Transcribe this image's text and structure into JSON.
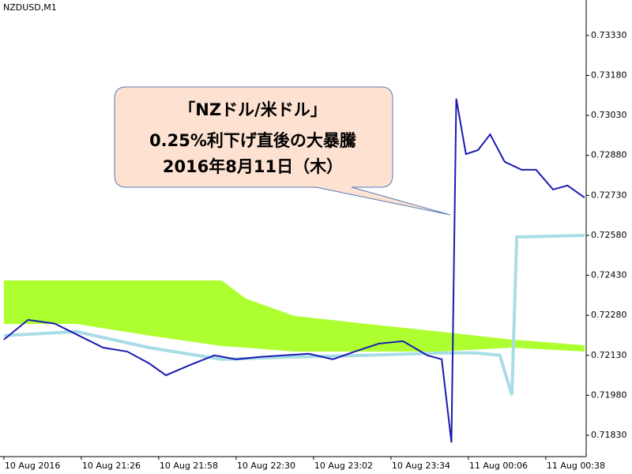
{
  "chart_data": {
    "type": "line",
    "symbol": "NZDUSD,M1",
    "annotation": [
      "「NZドル/米ドル」",
      "0.25%利下げ直後の大暴騰",
      "2016年8月11日（木）"
    ],
    "xlim": [
      -1.6,
      240.7
    ],
    "ylim": [
      0.7175,
      0.73463
    ],
    "xticks": [
      {
        "value": 0,
        "label": "10 Aug 2016"
      },
      {
        "value": 32,
        "label": "10 Aug 21:26"
      },
      {
        "value": 64,
        "label": "10 Aug 21:58"
      },
      {
        "value": 96,
        "label": "10 Aug 22:30"
      },
      {
        "value": 128,
        "label": "10 Aug 23:02"
      },
      {
        "value": 160,
        "label": "10 Aug 23:34"
      },
      {
        "value": 192,
        "label": "11 Aug 00:06"
      },
      {
        "value": 224,
        "label": "11 Aug 00:38"
      }
    ],
    "yticks": [
      {
        "value": 0.7183,
        "label": "0.71830"
      },
      {
        "value": 0.7198,
        "label": "0.71980"
      },
      {
        "value": 0.7213,
        "label": "0.72130"
      },
      {
        "value": 0.7228,
        "label": "0.72280"
      },
      {
        "value": 0.7243,
        "label": "0.72430"
      },
      {
        "value": 0.7258,
        "label": "0.72580"
      },
      {
        "value": 0.7273,
        "label": "0.72730"
      },
      {
        "value": 0.7288,
        "label": "0.72880"
      },
      {
        "value": 0.7303,
        "label": "0.73030"
      },
      {
        "value": 0.7318,
        "label": "0.73180"
      },
      {
        "value": 0.7333,
        "label": "0.73330"
      }
    ],
    "cloud": {
      "color": "#adff2f",
      "x": [
        0,
        30,
        60,
        90,
        100,
        120,
        150,
        180,
        210,
        240
      ],
      "upper": [
        0.72411,
        0.72411,
        0.72411,
        0.72411,
        0.72343,
        0.72278,
        0.72248,
        0.72219,
        0.72189,
        0.72168
      ],
      "lower": [
        0.72248,
        0.72248,
        0.72204,
        0.72165,
        0.72159,
        0.72144,
        0.72144,
        0.72144,
        0.72159,
        0.72144
      ]
    },
    "base_line": {
      "color": "#a8dce6",
      "x": [
        0,
        30,
        60,
        90,
        120,
        150,
        180,
        185,
        195,
        205,
        210,
        212,
        240
      ],
      "values": [
        0.72204,
        0.72219,
        0.72159,
        0.72115,
        0.72124,
        0.7213,
        0.72139,
        0.72139,
        0.72139,
        0.7213,
        0.71981,
        0.72574,
        0.7258
      ]
    },
    "price": {
      "color": "#1b1bb0",
      "x": [
        0,
        10,
        21,
        31,
        41,
        51,
        60,
        67,
        77,
        87,
        96,
        106,
        116,
        126,
        136,
        145,
        155,
        165,
        175,
        181,
        185,
        187,
        191,
        196,
        201,
        207,
        214,
        220,
        227,
        233,
        240
      ],
      "values": [
        0.72189,
        0.72263,
        0.72249,
        0.72204,
        0.72159,
        0.72144,
        0.721,
        0.72055,
        0.72094,
        0.7213,
        0.72115,
        0.72124,
        0.7213,
        0.72136,
        0.72115,
        0.72144,
        0.72174,
        0.72183,
        0.7213,
        0.72115,
        0.71803,
        0.73093,
        0.72885,
        0.729,
        0.72959,
        0.72856,
        0.72826,
        0.72826,
        0.72752,
        0.72767,
        0.72722
      ]
    }
  }
}
